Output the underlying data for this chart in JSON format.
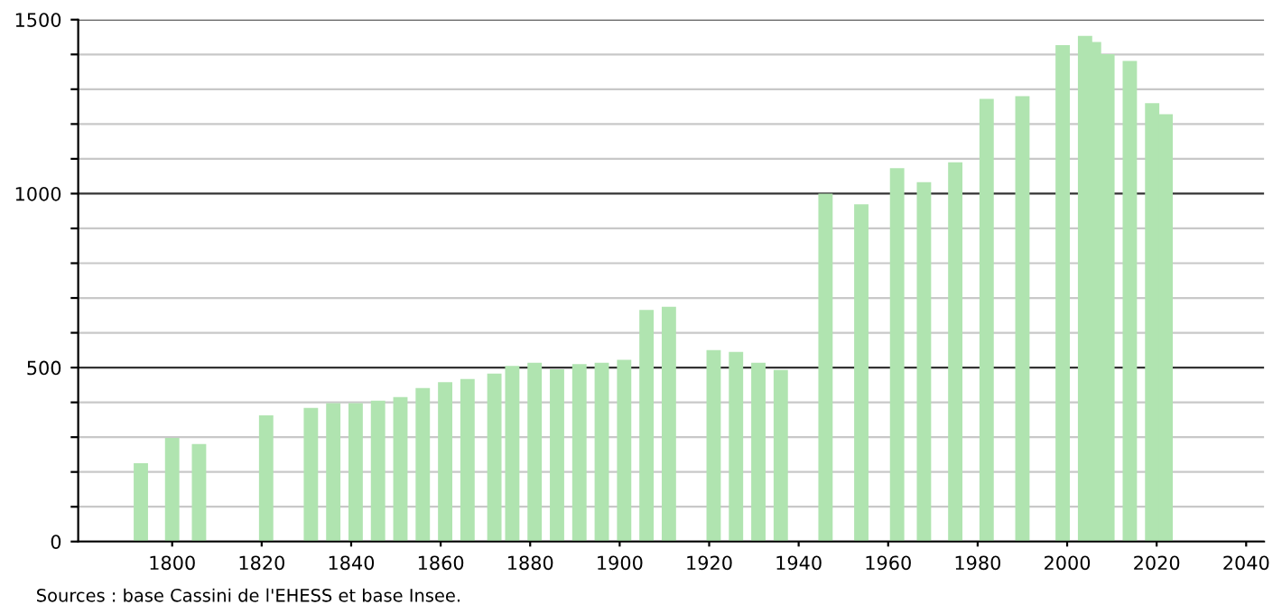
{
  "chart_data": {
    "type": "bar",
    "x": [
      1793,
      1800,
      1806,
      1821,
      1831,
      1836,
      1841,
      1846,
      1851,
      1856,
      1861,
      1866,
      1872,
      1876,
      1881,
      1886,
      1891,
      1896,
      1901,
      1906,
      1911,
      1921,
      1926,
      1931,
      1936,
      1946,
      1954,
      1962,
      1968,
      1975,
      1982,
      1990,
      1999,
      2004,
      2006,
      2009,
      2014,
      2019,
      2022
    ],
    "values": [
      225,
      298,
      280,
      363,
      384,
      398,
      398,
      405,
      415,
      441,
      458,
      467,
      483,
      505,
      514,
      495,
      510,
      514,
      522,
      666,
      675,
      550,
      545,
      514,
      493,
      1000,
      969,
      1073,
      1033,
      1090,
      1272,
      1280,
      1427,
      1453,
      1436,
      1401,
      1381,
      1260,
      1228
    ],
    "color": "#b0e4b0",
    "xlim": [
      1779,
      2044
    ],
    "xticks": [
      1800,
      1820,
      1840,
      1860,
      1880,
      1900,
      1920,
      1940,
      1960,
      1980,
      2000,
      2020,
      2040
    ],
    "ylim": [
      0,
      1500
    ],
    "yticks": [
      0,
      {
        "value": 100,
        "label": null
      },
      {
        "value": 200,
        "label": null
      },
      {
        "value": 300,
        "label": null
      },
      {
        "value": 400,
        "label": null
      },
      500,
      {
        "value": 600,
        "label": null
      },
      {
        "value": 700,
        "label": null
      },
      {
        "value": 800,
        "label": null
      },
      {
        "value": 900,
        "label": null
      },
      1000,
      {
        "value": 1100,
        "label": null
      },
      {
        "value": 1200,
        "label": null
      },
      {
        "value": 1300,
        "label": null
      },
      {
        "value": 1400,
        "label": null
      },
      1500
    ],
    "grid": "y",
    "annotations": [
      "Sources : base Cassini de l'EHESS et base Insee."
    ]
  }
}
